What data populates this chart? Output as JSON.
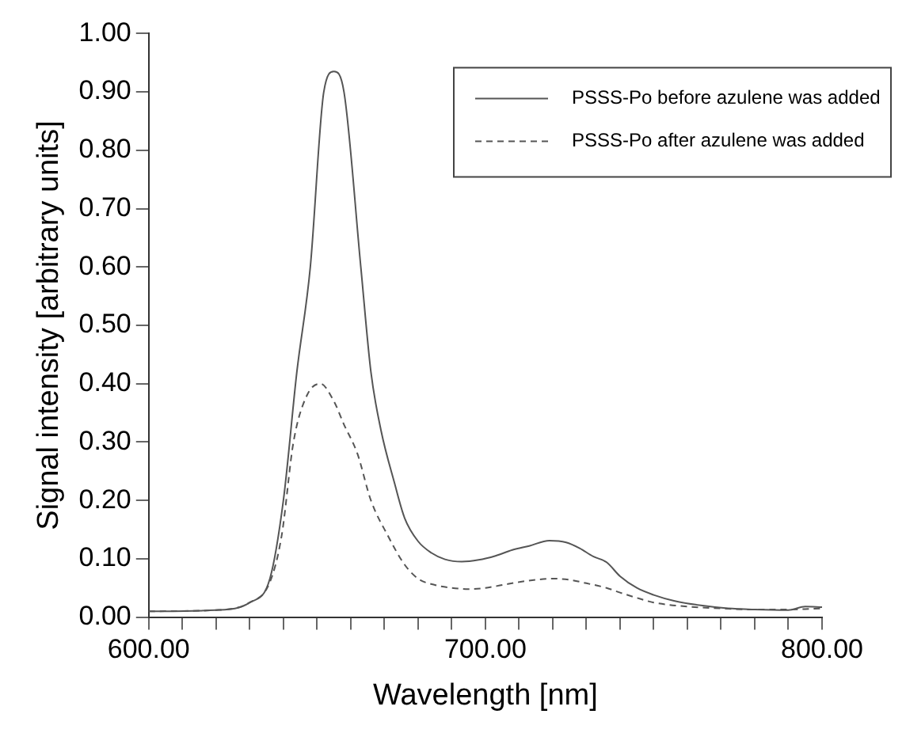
{
  "chart_data": {
    "type": "line",
    "xlabel": "Wavelength [nm]",
    "ylabel": "Signal intensity [arbitrary units]",
    "xlim": [
      600,
      800
    ],
    "ylim": [
      0,
      1
    ],
    "xticks": [
      {
        "value": 600,
        "label": "600.00"
      },
      {
        "value": 610,
        "label": null
      },
      {
        "value": 620,
        "label": null
      },
      {
        "value": 630,
        "label": null
      },
      {
        "value": 640,
        "label": null
      },
      {
        "value": 650,
        "label": null
      },
      {
        "value": 660,
        "label": null
      },
      {
        "value": 670,
        "label": null
      },
      {
        "value": 680,
        "label": null
      },
      {
        "value": 690,
        "label": null
      },
      {
        "value": 700,
        "label": "700.00"
      },
      {
        "value": 710,
        "label": null
      },
      {
        "value": 720,
        "label": null
      },
      {
        "value": 730,
        "label": null
      },
      {
        "value": 740,
        "label": null
      },
      {
        "value": 750,
        "label": null
      },
      {
        "value": 760,
        "label": null
      },
      {
        "value": 770,
        "label": null
      },
      {
        "value": 780,
        "label": null
      },
      {
        "value": 790,
        "label": null
      },
      {
        "value": 800,
        "label": "800.00"
      }
    ],
    "yticks": [
      {
        "value": 0,
        "label": "0.00"
      },
      {
        "value": 0.1,
        "label": "0.10"
      },
      {
        "value": 0.2,
        "label": "0.20"
      },
      {
        "value": 0.3,
        "label": "0.30"
      },
      {
        "value": 0.4,
        "label": "0.40"
      },
      {
        "value": 0.5,
        "label": "0.50"
      },
      {
        "value": 0.6,
        "label": "0.60"
      },
      {
        "value": 0.7,
        "label": "0.70"
      },
      {
        "value": 0.8,
        "label": "0.80"
      },
      {
        "value": 0.9,
        "label": "0.90"
      },
      {
        "value": 1,
        "label": "1.00"
      }
    ],
    "grid": false,
    "legend": "top right",
    "marker": "none",
    "series": [
      {
        "name": "PSSS-Po before azulene was added",
        "color": "#555555",
        "line_style": "solid",
        "x": [
          600,
          620,
          630,
          636,
          640,
          644,
          648,
          652,
          655,
          658,
          663,
          666,
          669,
          673,
          676,
          680,
          684,
          688,
          693,
          698,
          703,
          708,
          713,
          719,
          724,
          728,
          732,
          736,
          740,
          745,
          750,
          756,
          764,
          772,
          780,
          790,
          795,
          800
        ],
        "values": [
          0.01,
          0.012,
          0.025,
          0.066,
          0.2,
          0.42,
          0.6,
          0.9,
          0.935,
          0.9,
          0.6,
          0.42,
          0.32,
          0.23,
          0.17,
          0.13,
          0.11,
          0.099,
          0.095,
          0.098,
          0.105,
          0.115,
          0.122,
          0.131,
          0.128,
          0.118,
          0.104,
          0.094,
          0.07,
          0.05,
          0.038,
          0.028,
          0.02,
          0.015,
          0.013,
          0.012,
          0.018,
          0.017
        ]
      },
      {
        "name": "PSSS-Po after azulene was added",
        "color": "#555555",
        "line_style": "dashed",
        "x": [
          600,
          620,
          630,
          636,
          639.5,
          643,
          647,
          651,
          655,
          658,
          662,
          666,
          671,
          676,
          680,
          685,
          690,
          695,
          700,
          705,
          710,
          715,
          720,
          725,
          730,
          736,
          740,
          745,
          750,
          760,
          770,
          780,
          790,
          800
        ],
        "values": [
          0.01,
          0.012,
          0.025,
          0.06,
          0.14,
          0.3,
          0.38,
          0.4,
          0.37,
          0.33,
          0.28,
          0.2,
          0.14,
          0.09,
          0.066,
          0.055,
          0.05,
          0.048,
          0.05,
          0.055,
          0.06,
          0.064,
          0.066,
          0.064,
          0.058,
          0.05,
          0.042,
          0.033,
          0.025,
          0.018,
          0.015,
          0.013,
          0.013,
          0.015
        ]
      }
    ]
  }
}
